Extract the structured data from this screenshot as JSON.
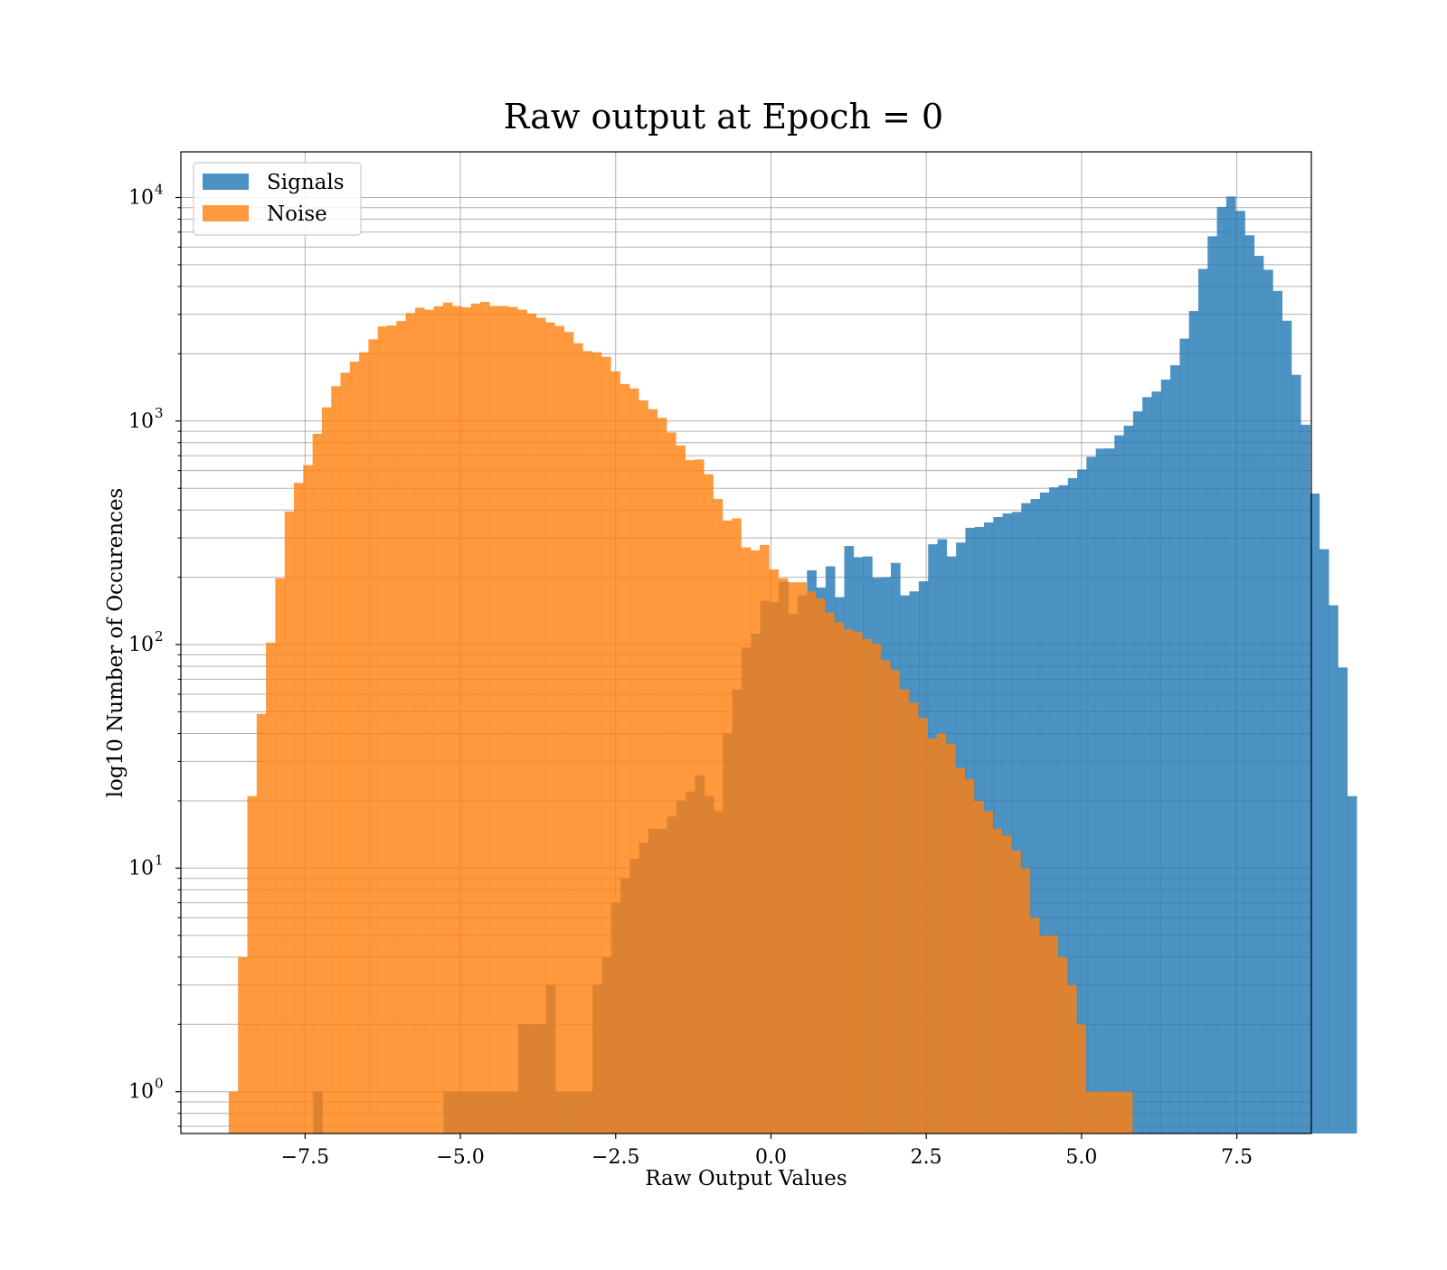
{
  "chart_data": {
    "type": "bar",
    "title": "Raw output at Epoch = 0",
    "xlabel": "Raw Output Values",
    "ylabel": "log10 Number of Occurences",
    "yscale": "log",
    "xlim": [
      -9.5,
      8.7
    ],
    "ylim": [
      0.65,
      16000
    ],
    "grid": "on",
    "legend_position": "top-left",
    "bin_width": 0.15,
    "x_ticks": [
      {
        "value": -7.5,
        "label": "−7.5"
      },
      {
        "value": -5.0,
        "label": "−5.0"
      },
      {
        "value": -2.5,
        "label": "−2.5"
      },
      {
        "value": 0.0,
        "label": "0.0"
      },
      {
        "value": 2.5,
        "label": "2.5"
      },
      {
        "value": 5.0,
        "label": "5.0"
      },
      {
        "value": 7.5,
        "label": "7.5"
      }
    ],
    "y_ticks": [
      {
        "value": 1,
        "base": "10",
        "exp": "0"
      },
      {
        "value": 10,
        "base": "10",
        "exp": "1"
      },
      {
        "value": 100,
        "base": "10",
        "exp": "2"
      },
      {
        "value": 1000,
        "base": "10",
        "exp": "3"
      },
      {
        "value": 10000,
        "base": "10",
        "exp": "4"
      }
    ],
    "series": [
      {
        "name": "Signals",
        "color": "#1f77b4",
        "opacity": 0.8,
        "bins_start": -7.37,
        "values": [
          1,
          0,
          0,
          0,
          0,
          0,
          0,
          0,
          0,
          0,
          0,
          0,
          0,
          0,
          1,
          1,
          1,
          1,
          1,
          1,
          1,
          1,
          2,
          2,
          2,
          3,
          1,
          1,
          1,
          1,
          3,
          4,
          7,
          9,
          11,
          13,
          15,
          15,
          17,
          20,
          22,
          26,
          21,
          18,
          40,
          63,
          97,
          112,
          157,
          155,
          191,
          137,
          166,
          215,
          180,
          224,
          163,
          276,
          246,
          248,
          199,
          200,
          232,
          166,
          173,
          192,
          281,
          296,
          248,
          286,
          333,
          336,
          352,
          372,
          386,
          392,
          429,
          448,
          479,
          505,
          516,
          555,
          607,
          692,
          753,
          754,
          863,
          953,
          1105,
          1279,
          1355,
          1533,
          1776,
          2337,
          3107,
          4789,
          6708,
          9074,
          10096,
          8709,
          6778,
          5479,
          4749,
          3820,
          2810,
          1609,
          963,
          474,
          267,
          150,
          79,
          21
        ]
      },
      {
        "name": "Noise",
        "color": "#ff7f0e",
        "opacity": 0.8,
        "bins_start": -8.73,
        "values": [
          1,
          4,
          21,
          49,
          102,
          198,
          394,
          529,
          635,
          877,
          1152,
          1432,
          1647,
          1844,
          2031,
          2321,
          2649,
          2677,
          2803,
          3043,
          3215,
          3145,
          3263,
          3388,
          3271,
          3227,
          3354,
          3411,
          3271,
          3271,
          3237,
          3146,
          3028,
          2895,
          2763,
          2664,
          2504,
          2229,
          2056,
          2031,
          1938,
          1670,
          1464,
          1399,
          1237,
          1130,
          1033,
          889,
          777,
          668,
          673,
          578,
          448,
          359,
          367,
          272,
          264,
          279,
          217,
          198,
          190,
          190,
          173,
          161,
          139,
          126,
          117,
          114,
          106,
          101,
          85,
          77,
          63,
          55,
          47,
          38,
          40,
          36,
          28,
          25,
          20,
          18,
          15,
          14,
          12,
          10,
          6,
          5,
          5,
          4,
          3,
          2,
          1,
          1,
          1,
          1,
          1
        ]
      }
    ]
  }
}
